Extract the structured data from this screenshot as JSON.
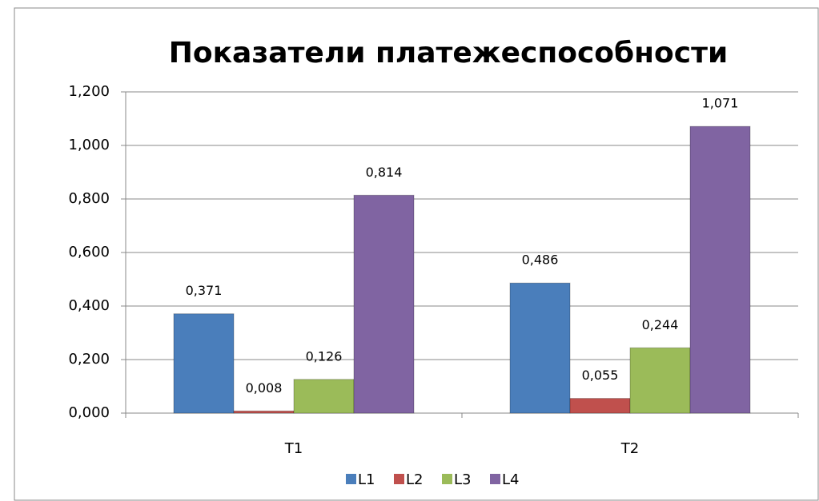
{
  "chart_data": {
    "type": "bar",
    "title": "Показатели платежеспособности",
    "categories": [
      "T1",
      "T2"
    ],
    "series": [
      {
        "name": "L1",
        "color": "#4a7ebb",
        "values": [
          0.371,
          0.486
        ],
        "value_labels": [
          "0,371",
          "0,486"
        ]
      },
      {
        "name": "L2",
        "color": "#c0504d",
        "values": [
          0.008,
          0.055
        ],
        "value_labels": [
          "0,008",
          "0,055"
        ]
      },
      {
        "name": "L3",
        "color": "#9bbb59",
        "values": [
          0.126,
          0.244
        ],
        "value_labels": [
          "0,126",
          "0,244"
        ]
      },
      {
        "name": "L4",
        "color": "#8064a2",
        "values": [
          0.814,
          1.071
        ],
        "value_labels": [
          "0,814",
          "1,071"
        ]
      }
    ],
    "ylim": [
      0,
      1.2
    ],
    "yticks": [
      {
        "value": 0,
        "label": "0,000"
      },
      {
        "value": 0.2,
        "label": "0,200"
      },
      {
        "value": 0.4,
        "label": "0,400"
      },
      {
        "value": 0.6,
        "label": "0,600"
      },
      {
        "value": 0.8,
        "label": "0,800"
      },
      {
        "value": 1.0,
        "label": "1,000"
      },
      {
        "value": 1.2,
        "label": "1,200"
      }
    ],
    "grid": true,
    "legend": "bottom"
  }
}
